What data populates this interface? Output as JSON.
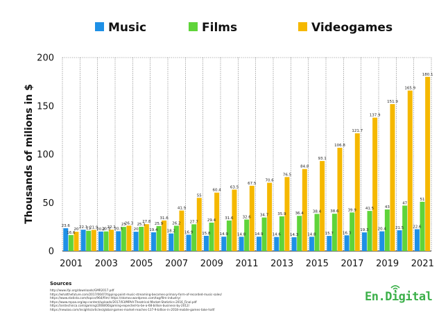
{
  "chart_data": {
    "type": "bar",
    "ylabel": "Thousands of milions in $",
    "ylim": [
      0,
      200
    ],
    "yticks": [
      0,
      50,
      100,
      150,
      200
    ],
    "grid": "vertical dotted",
    "legend_position": "top",
    "categories": [
      "2001",
      "2002",
      "2003",
      "2004",
      "2005",
      "2006",
      "2007",
      "2008",
      "2009",
      "2010",
      "2011",
      "2012",
      "2013",
      "2014",
      "2015",
      "2016",
      "2017",
      "2018",
      "2019",
      "2020",
      "2021"
    ],
    "xtick_labels": [
      "2001",
      "",
      "2003",
      "",
      "2005",
      "",
      "2007",
      "",
      "2009",
      "",
      "2011",
      "",
      "2013",
      "",
      "2015",
      "",
      "2017",
      "",
      "2019",
      "",
      "2021"
    ],
    "series": [
      {
        "name": "Music",
        "color": "#1e90e6",
        "values": [
          23.6,
          22.1,
          20.2,
          20.5,
          20,
          19.4,
          18.2,
          16.9,
          15.8,
          14.9,
          14.8,
          14.9,
          14.6,
          14.3,
          14.8,
          15.7,
          16.3,
          19.3,
          20.4,
          21.5,
          22.6
        ],
        "labels": [
          "23.6",
          "22.1",
          "20.2",
          "20.5",
          "20",
          "19.4",
          "18.2",
          "16.9",
          "15.8",
          "14.9",
          "14.8",
          "14.9",
          "14.6",
          "14.3",
          "14.8",
          "15.7",
          "16.3",
          "19.3",
          "20.4",
          "21.5",
          "22.6"
        ]
      },
      {
        "name": "Films",
        "color": "#5fd43a",
        "values": [
          16.6,
          21,
          20.3,
          25,
          25.1,
          25.9,
          26.2,
          27.7,
          29.4,
          31.6,
          32.6,
          34.7,
          35.9,
          36.4,
          38.4,
          38.6,
          39.9,
          41.5,
          43,
          47,
          51
        ],
        "labels": [
          "16.6",
          "21",
          "20.3",
          "25",
          "25.1",
          "25.9",
          "26.2",
          "27.7",
          "29.4",
          "31.6",
          "32.6",
          "34.7",
          "35.9",
          "36.4",
          "38.4",
          "38.6",
          "39.9",
          "41.5",
          "43",
          "47",
          "51"
        ]
      },
      {
        "name": "Videogames",
        "color": "#f5b800",
        "values": [
          20,
          21.9,
          22.1,
          26.3,
          27.8,
          31.6,
          41.9,
          55,
          60.4,
          63.5,
          67.5,
          70.6,
          76.5,
          84.8,
          93.1,
          106.8,
          121.7,
          137.9,
          151.9,
          165.9,
          180.1
        ],
        "labels": [
          "20",
          "21.9",
          "22.1",
          "26.3",
          "27.8",
          "31.6",
          "41.9",
          "55",
          "60.4",
          "63.5",
          "67.5",
          "70.6",
          "76.5",
          "84.8",
          "93.1",
          "106.8",
          "121.7",
          "137.9",
          "151.9",
          "165.9",
          "180.1"
        ]
      }
    ]
  },
  "sources": {
    "title": "Sources",
    "lines": [
      "http://www.ifpi.org/downloads/GMR2017.pdf",
      "https://whatthefuture.com/2017/06/07/tipping-point-music-streaming-becomes-primary-form-of-recorded-music-sales/",
      "https://www.statista.com/topics/964/film/          https://stomov.wordpress.com/tag/film-industry/",
      "https://www.mpaa.org/wp-content/uploads/2017/03/MPAA-Theatrical-Market-Statistics-2016_Final.pdf",
      "https://arstechnica.com/gaming/2008/06/gaming-expected-to-be-a-68-billion-business-by-2012/",
      "https://newzoo.com/insights/articles/global-games-market-reaches-137-9-billion-in-2018-mobile-games-take-half/"
    ]
  },
  "brand": {
    "name": "En.Digital",
    "color": "#3cb04a"
  }
}
